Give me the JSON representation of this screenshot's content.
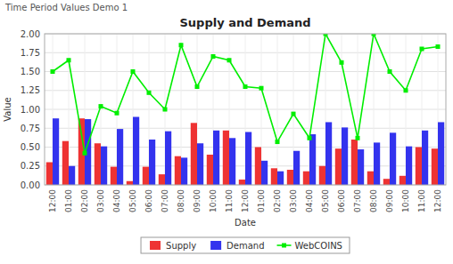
{
  "chart_data": {
    "type": "bar",
    "title": "Supply and Demand",
    "annotations": [
      "Time Period Values Demo 1"
    ],
    "x_label": "Date",
    "y_label": "Value",
    "categories": [
      "12:00",
      "01:00",
      "02:00",
      "03:00",
      "04:00",
      "05:00",
      "06:00",
      "07:00",
      "08:00",
      "09:00",
      "10:00",
      "11:00",
      "12:00",
      "01:00",
      "02:00",
      "03:00",
      "04:00",
      "05:00",
      "06:00",
      "07:00",
      "08:00",
      "09:00",
      "10:00",
      "11:00",
      "12:00"
    ],
    "series": [
      {
        "name": "Supply",
        "type": "bar",
        "color": "#EE3333",
        "values": [
          0.3,
          0.58,
          0.88,
          0.55,
          0.24,
          0.05,
          0.24,
          0.14,
          0.38,
          0.82,
          0.4,
          0.72,
          0.07,
          0.5,
          0.22,
          0.2,
          0.18,
          0.25,
          0.48,
          0.6,
          0.18,
          0.08,
          0.12,
          0.5,
          0.48
        ]
      },
      {
        "name": "Demand",
        "type": "bar",
        "color": "#3333EE",
        "values": [
          0.88,
          0.25,
          0.87,
          0.51,
          0.74,
          0.9,
          0.6,
          0.71,
          0.36,
          0.55,
          0.72,
          0.62,
          0.7,
          0.32,
          0.18,
          0.45,
          0.67,
          0.83,
          0.76,
          0.47,
          0.56,
          0.69,
          0.51,
          0.72,
          0.83
        ]
      },
      {
        "name": "WebCOINS",
        "type": "line",
        "color": "#00EE00",
        "marker": "square",
        "values": [
          1.5,
          1.65,
          0.42,
          1.04,
          0.95,
          1.5,
          1.22,
          1.0,
          1.85,
          1.3,
          1.7,
          1.65,
          1.3,
          1.28,
          0.57,
          0.94,
          0.62,
          2.0,
          1.62,
          0.62,
          2.0,
          1.5,
          1.25,
          1.8,
          1.83
        ]
      }
    ],
    "ylim": [
      0.0,
      2.0
    ],
    "yticks": [
      {
        "value": 0.0,
        "label": "0.00"
      },
      0.25,
      {
        "value": 0.5,
        "label": "0.50"
      },
      0.75,
      {
        "value": 1.0,
        "label": "1.00"
      },
      1.25,
      {
        "value": 1.5,
        "label": "1.50"
      },
      1.75,
      {
        "value": 2.0,
        "label": "2.00"
      }
    ],
    "grid": true,
    "legend": "bottom"
  }
}
